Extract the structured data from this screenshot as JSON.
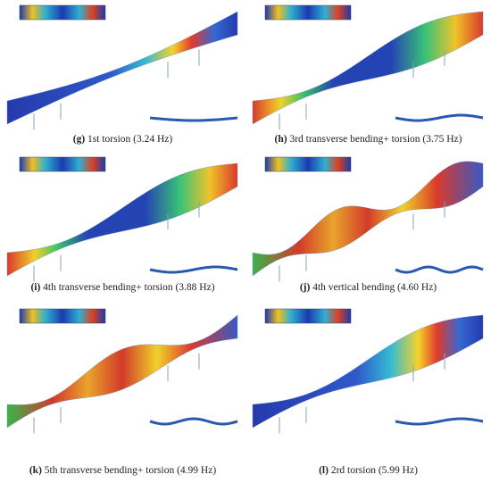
{
  "panels": [
    {
      "label": "(g)",
      "caption": "1st torsion (3.24 Hz)"
    },
    {
      "label": "(h)",
      "caption": "3rd transverse bending+ torsion (3.75 Hz)"
    },
    {
      "label": "(i)",
      "caption": "4th transverse bending+ torsion (3.88 Hz)"
    },
    {
      "label": "(j)",
      "caption": "4th vertical bending (4.60 Hz)"
    },
    {
      "label": "(k)",
      "caption": "5th transverse bending+ torsion (4.99 Hz)"
    },
    {
      "label": "(l)",
      "caption": "2rd torsion (5.99 Hz)"
    }
  ]
}
